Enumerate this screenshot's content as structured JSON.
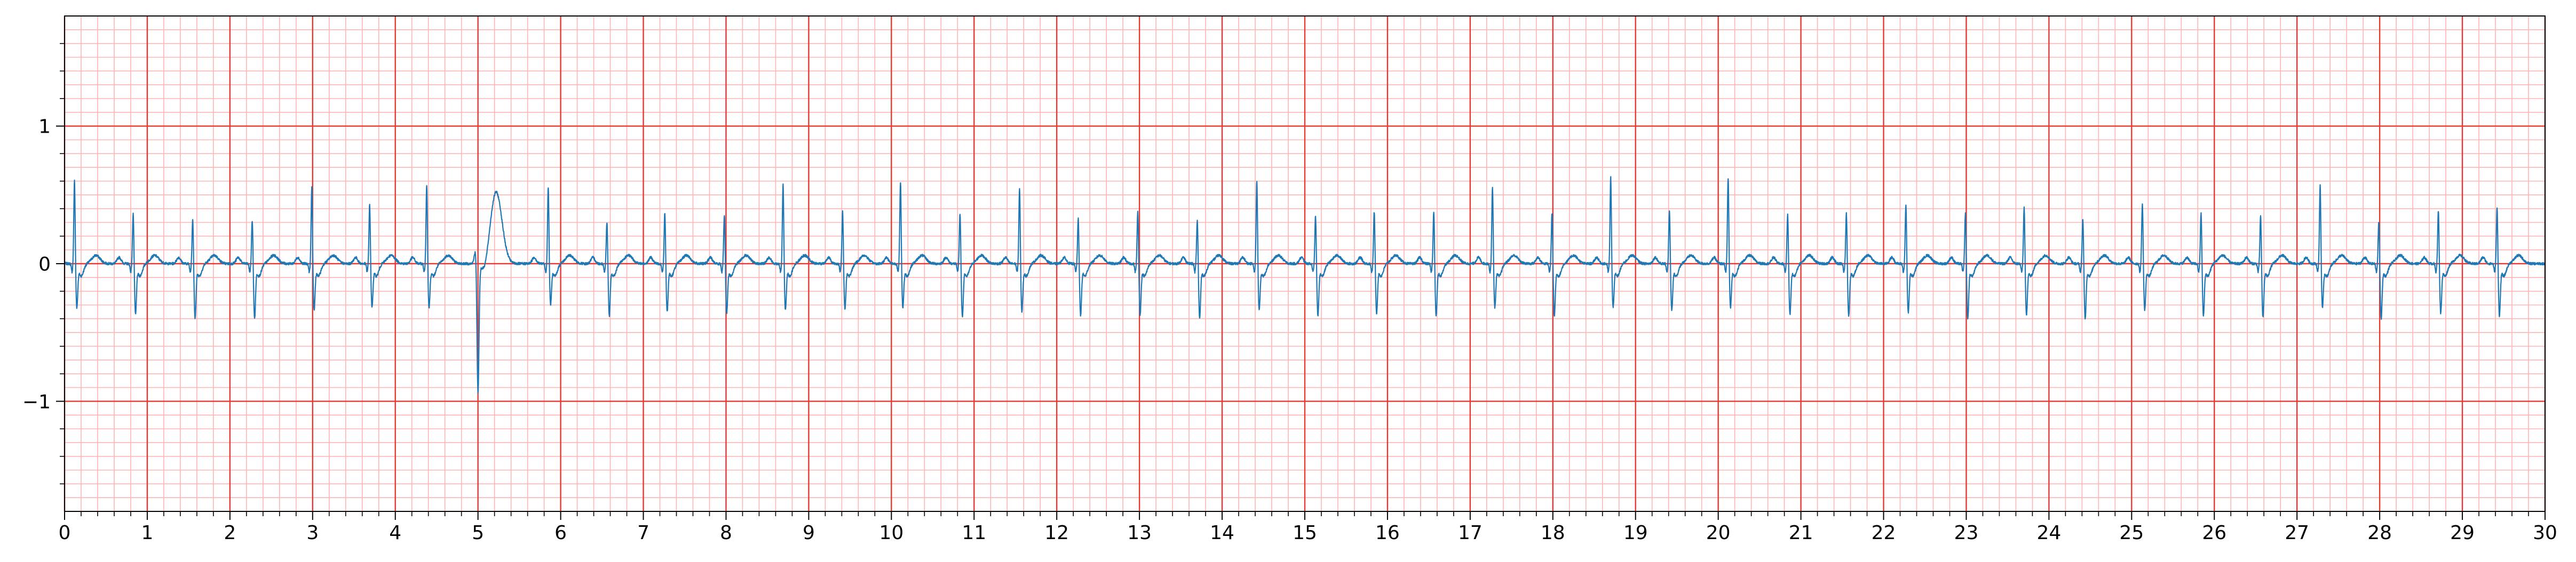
{
  "chart_data": {
    "type": "line",
    "title": "",
    "xlabel": "",
    "ylabel": "",
    "xlim": [
      0,
      30
    ],
    "ylim": [
      -1.8,
      1.8
    ],
    "x_ticks": [
      "0",
      "1",
      "2",
      "3",
      "4",
      "5",
      "6",
      "7",
      "8",
      "9",
      "10",
      "11",
      "12",
      "13",
      "14",
      "15",
      "16",
      "17",
      "18",
      "19",
      "20",
      "21",
      "22",
      "23",
      "24",
      "25",
      "26",
      "27",
      "28",
      "29",
      "30"
    ],
    "y_ticks": [
      {
        "value": 1,
        "label": "1"
      },
      {
        "value": 0,
        "label": "0"
      },
      {
        "value": -1,
        "label": "−1"
      }
    ],
    "grid": {
      "major": true,
      "major_x_step": 1,
      "major_y_step": 1,
      "major_color": "#e53935",
      "minor": true,
      "minor_x_step": 0.2,
      "minor_y_step": 0.1,
      "minor_color": "#ffb3b3"
    },
    "series": [
      {
        "color": "#1f77b4",
        "beats": [
          {
            "t": 0.12,
            "r": 0.62,
            "s": -0.3
          },
          {
            "t": 0.83,
            "r": 0.38,
            "s": -0.35
          },
          {
            "t": 1.55,
            "r": 0.34,
            "s": -0.38
          },
          {
            "t": 2.27,
            "r": 0.33,
            "s": -0.38
          },
          {
            "t": 2.99,
            "r": 0.57,
            "s": -0.32
          },
          {
            "t": 3.69,
            "r": 0.44,
            "s": -0.3
          },
          {
            "t": 4.38,
            "r": 0.59,
            "s": -0.3
          },
          {
            "t": 5.0,
            "r": 0.1,
            "s": -0.94,
            "pvc": true
          },
          {
            "t": 5.85,
            "r": 0.57,
            "s": -0.28
          },
          {
            "t": 6.56,
            "r": 0.32,
            "s": -0.36
          },
          {
            "t": 7.26,
            "r": 0.38,
            "s": -0.33
          },
          {
            "t": 7.98,
            "r": 0.37,
            "s": -0.34
          },
          {
            "t": 8.69,
            "r": 0.59,
            "s": -0.32
          },
          {
            "t": 9.41,
            "r": 0.39,
            "s": -0.31
          },
          {
            "t": 10.11,
            "r": 0.61,
            "s": -0.3
          },
          {
            "t": 10.83,
            "r": 0.38,
            "s": -0.37
          },
          {
            "t": 11.55,
            "r": 0.56,
            "s": -0.33
          },
          {
            "t": 12.26,
            "r": 0.34,
            "s": -0.36
          },
          {
            "t": 12.98,
            "r": 0.39,
            "s": -0.35
          },
          {
            "t": 13.7,
            "r": 0.33,
            "s": -0.38
          },
          {
            "t": 14.42,
            "r": 0.61,
            "s": -0.32
          },
          {
            "t": 15.13,
            "r": 0.36,
            "s": -0.36
          },
          {
            "t": 15.84,
            "r": 0.39,
            "s": -0.34
          },
          {
            "t": 16.56,
            "r": 0.39,
            "s": -0.36
          },
          {
            "t": 17.27,
            "r": 0.57,
            "s": -0.3
          },
          {
            "t": 17.99,
            "r": 0.38,
            "s": -0.36
          },
          {
            "t": 18.7,
            "r": 0.64,
            "s": -0.3
          },
          {
            "t": 19.41,
            "r": 0.4,
            "s": -0.32
          },
          {
            "t": 20.12,
            "r": 0.64,
            "s": -0.3
          },
          {
            "t": 20.84,
            "r": 0.37,
            "s": -0.35
          },
          {
            "t": 21.55,
            "r": 0.38,
            "s": -0.36
          },
          {
            "t": 22.27,
            "r": 0.44,
            "s": -0.34
          },
          {
            "t": 22.99,
            "r": 0.38,
            "s": -0.38
          },
          {
            "t": 23.7,
            "r": 0.42,
            "s": -0.35
          },
          {
            "t": 24.41,
            "r": 0.34,
            "s": -0.38
          },
          {
            "t": 25.13,
            "r": 0.45,
            "s": -0.32
          },
          {
            "t": 25.84,
            "r": 0.38,
            "s": -0.36
          },
          {
            "t": 26.56,
            "r": 0.36,
            "s": -0.37
          },
          {
            "t": 27.28,
            "r": 0.58,
            "s": -0.3
          },
          {
            "t": 27.99,
            "r": 0.32,
            "s": -0.38
          },
          {
            "t": 28.71,
            "r": 0.4,
            "s": -0.34
          },
          {
            "t": 29.42,
            "r": 0.42,
            "s": -0.36
          }
        ]
      }
    ]
  }
}
